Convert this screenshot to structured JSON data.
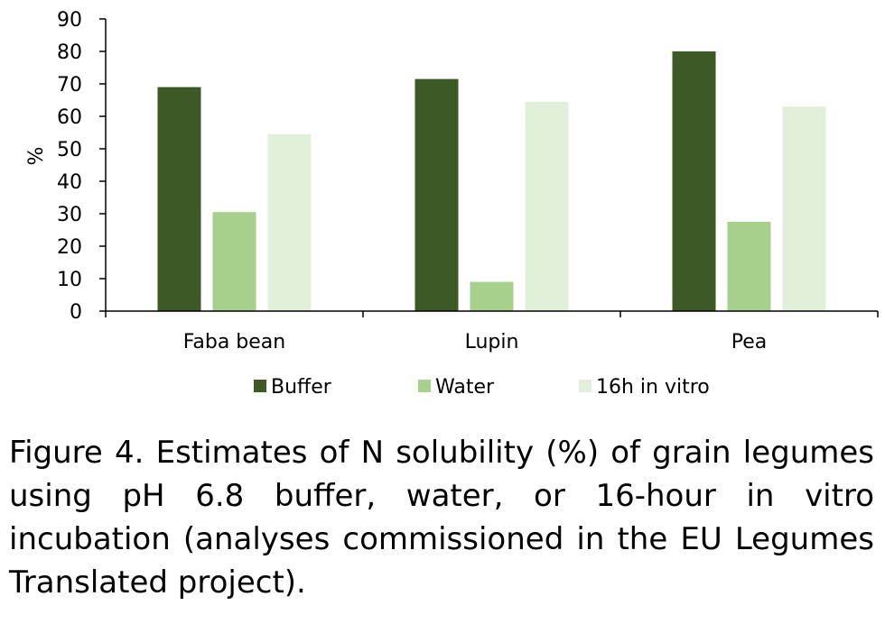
{
  "chart_data": {
    "type": "bar",
    "categories": [
      "Faba bean",
      "Lupin",
      "Pea"
    ],
    "series": [
      {
        "name": "Buffer",
        "values": [
          69,
          71.5,
          80
        ],
        "color": "#3d5a26"
      },
      {
        "name": "Water",
        "values": [
          30.5,
          9,
          27.5
        ],
        "color": "#a8d08d"
      },
      {
        "name": "16h in vitro",
        "values": [
          54.5,
          64.5,
          63
        ],
        "color": "#e2efd9"
      }
    ],
    "ylabel": "%",
    "xlabel": "",
    "ylim": [
      0,
      90
    ],
    "yticks": [
      0,
      10,
      20,
      30,
      40,
      50,
      60,
      70,
      80,
      90
    ],
    "legend_position": "bottom",
    "grid": false
  },
  "caption": "Figure 4. Estimates of N solubility (%) of grain legumes using pH 6.8 buffer, water, or 16-hour in vitro incubation (analyses commissioned in the EU Legumes Translated project)."
}
